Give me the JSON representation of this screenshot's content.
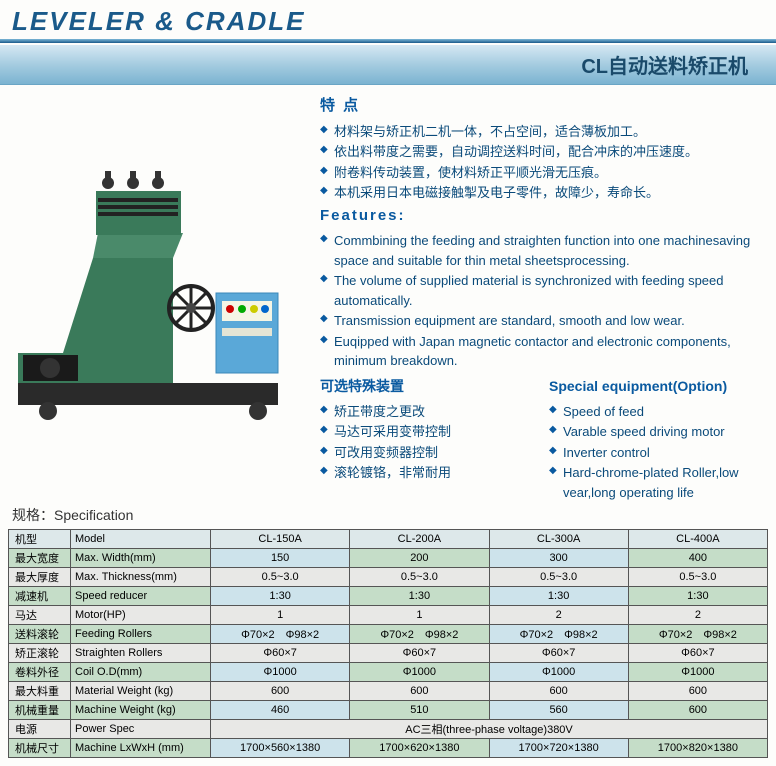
{
  "header": {
    "title": "LEVELER & CRADLE",
    "subtitle": "CL自动送料矫正机"
  },
  "features_cn": {
    "heading": "特 点",
    "items": [
      "材料架与矫正机二机一体，不占空间，适合薄板加工。",
      "依出料带度之需要，自动调控送料时间，配合冲床的冲压速度。",
      "附卷料传动装置，使材料矫正平顺光滑无压痕。",
      "本机采用日本电磁接触掣及电子零件，故障少，寿命长。"
    ]
  },
  "features_en": {
    "heading": "Features:",
    "items": [
      "Commbining the feeding and straighten function into one machinesaving space and suitable for thin metal sheetsprocessing.",
      "The volume of supplied material is synchronized with feeding speed automatically.",
      "Transmission equipment are standard, smooth and low wear.",
      "Euqipped with Japan magnetic contactor and electronic components, minimum breakdown."
    ]
  },
  "options_cn": {
    "heading": "可选特殊装置",
    "items": [
      "矫正带度之更改",
      "马达可采用变带控制",
      "可改用变频器控制",
      "滚轮镀铬，非常耐用"
    ]
  },
  "options_en": {
    "heading": "Special equipment(Option)",
    "items": [
      "Speed of feed",
      "Varable speed driving motor",
      "Inverter control",
      "Hard-chrome-plated Roller,low vear,long operating life"
    ]
  },
  "spec_label": "规格：Specification",
  "table": {
    "rows": [
      {
        "cn": "机型",
        "en": "Model",
        "cells": [
          "CL-150A",
          "CL-200A",
          "CL-300A",
          "CL-400A"
        ],
        "cls": "header-row"
      },
      {
        "cn": "最大宽度",
        "en": "Max. Width(mm)",
        "cells": [
          "150",
          "200",
          "300",
          "400"
        ],
        "cls": "row-blue"
      },
      {
        "cn": "最大厚度",
        "en": "Max. Thickness(mm)",
        "cells": [
          "0.5~3.0",
          "0.5~3.0",
          "0.5~3.0",
          "0.5~3.0"
        ],
        "cls": "row-grey"
      },
      {
        "cn": "减速机",
        "en": "Speed reducer",
        "cells": [
          "1:30",
          "1:30",
          "1:30",
          "1:30"
        ],
        "cls": "row-blue"
      },
      {
        "cn": "马达",
        "en": "Motor(HP)",
        "cells": [
          "1",
          "1",
          "2",
          "2"
        ],
        "cls": "row-grey"
      },
      {
        "cn": "送料滚轮",
        "en": "Feeding Rollers",
        "cells": [
          "Φ70×2　Φ98×2",
          "Φ70×2　Φ98×2",
          "Φ70×2　Φ98×2",
          "Φ70×2　Φ98×2"
        ],
        "cls": "row-blue"
      },
      {
        "cn": "矫正滚轮",
        "en": "Straighten Rollers",
        "cells": [
          "Φ60×7",
          "Φ60×7",
          "Φ60×7",
          "Φ60×7"
        ],
        "cls": "row-grey"
      },
      {
        "cn": "卷料外径",
        "en": "Coil O.D(mm)",
        "cells": [
          "Φ1000",
          "Φ1000",
          "Φ1000",
          "Φ1000"
        ],
        "cls": "row-blue"
      },
      {
        "cn": "最大料重",
        "en": "Material Weight (kg)",
        "cells": [
          "600",
          "600",
          "600",
          "600"
        ],
        "cls": "row-grey"
      },
      {
        "cn": "机械重量",
        "en": "Machine Weight (kg)",
        "cells": [
          "460",
          "510",
          "560",
          "600"
        ],
        "cls": "row-blue"
      },
      {
        "cn": "电源",
        "en": "Power Spec",
        "cells": [
          "AC三相(three-phase voltage)380V"
        ],
        "span": 4,
        "cls": "row-grey"
      },
      {
        "cn": "机械尺寸",
        "en": "Machine LxWxH (mm)",
        "cells": [
          "1700×560×1380",
          "1700×620×1380",
          "1700×720×1380",
          "1700×820×1380"
        ],
        "cls": "row-blue"
      }
    ]
  },
  "colors": {
    "brand": "#1a5a8a",
    "machine_body": "#3a7a5a",
    "machine_dark": "#2a2a2a",
    "control_box": "#5aa8d8"
  }
}
